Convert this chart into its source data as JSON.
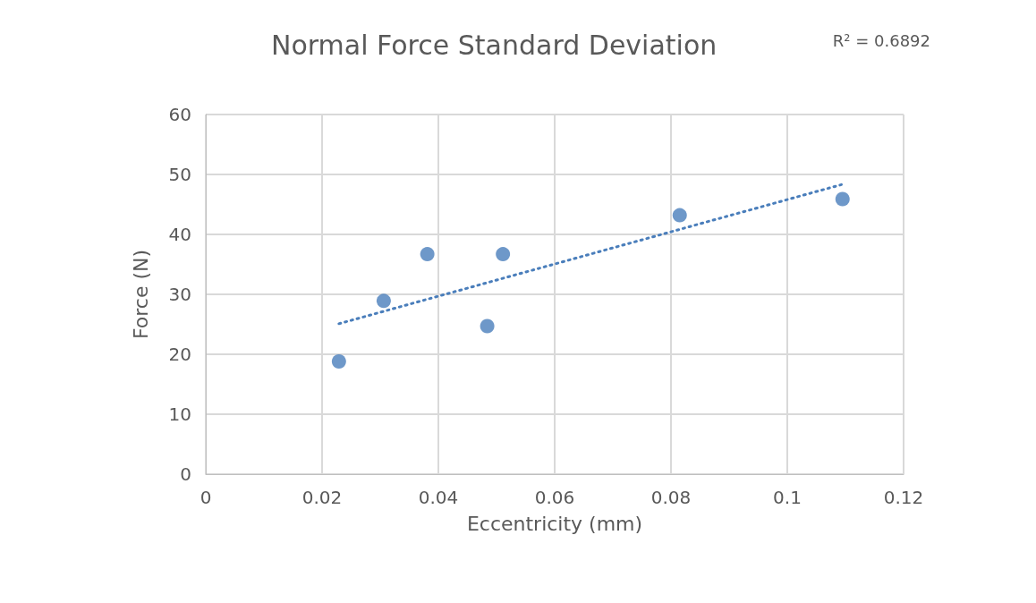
{
  "chart_data": {
    "type": "scatter",
    "title": "Normal Force Standard Deviation",
    "xlabel": "Eccentricity (mm)",
    "ylabel": "Force (N)",
    "annotations": [
      "R² = 0.6892"
    ],
    "x": [
      0.0229,
      0.0306,
      0.0381,
      0.0484,
      0.0511,
      0.0815,
      0.1095
    ],
    "series": [
      {
        "color": "#4a7ebb",
        "values": [
          18.8,
          28.9,
          36.7,
          24.7,
          36.7,
          43.2,
          45.9
        ],
        "marker": "circle"
      },
      {
        "type": "line",
        "color": "#4a7ebb",
        "x": [
          0.0229,
          0.1093
        ],
        "values": [
          25.1,
          48.3
        ],
        "line_style": "dotted",
        "marker": "none"
      }
    ],
    "xlim": [
      0,
      0.12
    ],
    "xticks": [
      0,
      0.02,
      0.04,
      0.06,
      0.08,
      0.1,
      0.12
    ],
    "ylim": [
      0,
      60
    ],
    "yticks": [
      0,
      10,
      20,
      30,
      40,
      50,
      60
    ],
    "grid": true
  }
}
